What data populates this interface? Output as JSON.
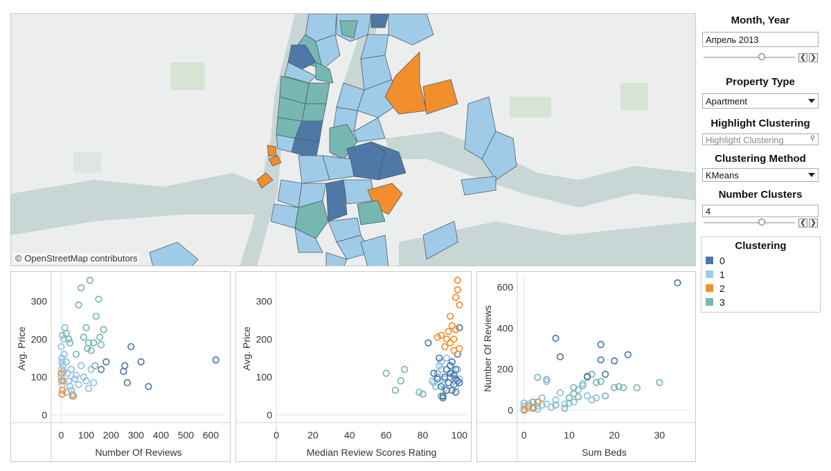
{
  "map": {
    "attribution": "© OpenStreetMap contributors"
  },
  "controls": {
    "month_year": {
      "title": "Month, Year",
      "value": "Апрель 2013",
      "slider_fraction": 0.65
    },
    "property_type": {
      "title": "Property Type",
      "value": "Apartment"
    },
    "highlight": {
      "title": "Highlight Clustering",
      "placeholder": "Highlight Clustering"
    },
    "method": {
      "title": "Clustering Method",
      "value": "KMeans"
    },
    "number_clusters": {
      "title": "Number Clusters",
      "value": "4",
      "slider_fraction": 0.65
    }
  },
  "legend": {
    "title": "Clustering",
    "items": [
      {
        "label": "0",
        "color": "#4e79a7"
      },
      {
        "label": "1",
        "color": "#a0cbe8"
      },
      {
        "label": "2",
        "color": "#f28e2b"
      },
      {
        "label": "3",
        "color": "#76b7b2"
      }
    ]
  },
  "chart_data": [
    {
      "type": "scatter",
      "xlabel": "Number Of Reviews",
      "ylabel": "Avg. Price",
      "xlim": [
        -40,
        660
      ],
      "ylim": [
        -20,
        370
      ],
      "xticks": [
        0,
        100,
        200,
        300,
        400,
        500,
        600
      ],
      "yticks": [
        0,
        100,
        200,
        300
      ],
      "points": [
        [
          0,
          100,
          1
        ],
        [
          2,
          120,
          1
        ],
        [
          3,
          140,
          1
        ],
        [
          5,
          80,
          1
        ],
        [
          8,
          90,
          1
        ],
        [
          10,
          200,
          1
        ],
        [
          12,
          160,
          1
        ],
        [
          15,
          230,
          1
        ],
        [
          20,
          60,
          1
        ],
        [
          25,
          110,
          1
        ],
        [
          30,
          90,
          1
        ],
        [
          35,
          75,
          1
        ],
        [
          40,
          65,
          1
        ],
        [
          45,
          55,
          1
        ],
        [
          50,
          50,
          1
        ],
        [
          55,
          95,
          1
        ],
        [
          60,
          105,
          1
        ],
        [
          70,
          80,
          1
        ],
        [
          80,
          130,
          1
        ],
        [
          90,
          100,
          1
        ],
        [
          100,
          90,
          1
        ],
        [
          110,
          70,
          1
        ],
        [
          120,
          120,
          1
        ],
        [
          130,
          85,
          1
        ],
        [
          5,
          210,
          1
        ],
        [
          0,
          180,
          1
        ],
        [
          3,
          150,
          1
        ],
        [
          6,
          130,
          1
        ],
        [
          10,
          115,
          1
        ],
        [
          20,
          140,
          1
        ],
        [
          40,
          120,
          1
        ],
        [
          0,
          110,
          2
        ],
        [
          2,
          90,
          2
        ],
        [
          5,
          65,
          2
        ],
        [
          3,
          55,
          2
        ],
        [
          45,
          50,
          2
        ],
        [
          20,
          215,
          3
        ],
        [
          30,
          200,
          3
        ],
        [
          35,
          190,
          3
        ],
        [
          60,
          160,
          3
        ],
        [
          70,
          290,
          3
        ],
        [
          80,
          335,
          3
        ],
        [
          90,
          205,
          3
        ],
        [
          100,
          230,
          3
        ],
        [
          105,
          175,
          3
        ],
        [
          110,
          190,
          3
        ],
        [
          115,
          355,
          3
        ],
        [
          120,
          170,
          3
        ],
        [
          130,
          190,
          3
        ],
        [
          140,
          260,
          3
        ],
        [
          150,
          305,
          3
        ],
        [
          155,
          205,
          3
        ],
        [
          160,
          185,
          3
        ],
        [
          170,
          225,
          3
        ],
        [
          135,
          130,
          3
        ],
        [
          160,
          120,
          0
        ],
        [
          180,
          140,
          0
        ],
        [
          250,
          115,
          0
        ],
        [
          255,
          130,
          0
        ],
        [
          265,
          85,
          0
        ],
        [
          280,
          180,
          0
        ],
        [
          320,
          140,
          0
        ],
        [
          350,
          75,
          0
        ],
        [
          620,
          145,
          0
        ]
      ]
    },
    {
      "type": "scatter",
      "xlabel": "Median Review Scores Rating",
      "ylabel": "Avg. Price",
      "xlim": [
        0,
        104
      ],
      "ylim": [
        -20,
        370
      ],
      "xticks": [
        0,
        20,
        40,
        60,
        80,
        100
      ],
      "yticks": [
        0,
        100,
        200,
        300
      ],
      "points": [
        [
          60,
          110,
          3
        ],
        [
          65,
          65,
          3
        ],
        [
          68,
          90,
          3
        ],
        [
          70,
          120,
          3
        ],
        [
          78,
          60,
          3
        ],
        [
          80,
          55,
          3
        ],
        [
          90,
          50,
          3
        ],
        [
          88,
          110,
          3
        ],
        [
          85,
          90,
          1
        ],
        [
          87,
          75,
          1
        ],
        [
          88,
          100,
          1
        ],
        [
          89,
          130,
          1
        ],
        [
          90,
          120,
          1
        ],
        [
          91,
          80,
          1
        ],
        [
          92,
          95,
          1
        ],
        [
          93,
          150,
          1
        ],
        [
          94,
          85,
          1
        ],
        [
          95,
          100,
          1
        ],
        [
          96,
          110,
          1
        ],
        [
          97,
          90,
          1
        ],
        [
          98,
          75,
          1
        ],
        [
          99,
          120,
          1
        ],
        [
          100,
          95,
          1
        ],
        [
          90,
          140,
          1
        ],
        [
          86,
          85,
          1
        ],
        [
          92,
          70,
          1
        ],
        [
          83,
          190,
          0
        ],
        [
          86,
          110,
          0
        ],
        [
          88,
          95,
          0
        ],
        [
          89,
          150,
          0
        ],
        [
          90,
          75,
          0
        ],
        [
          91,
          50,
          0
        ],
        [
          91,
          45,
          0
        ],
        [
          92,
          100,
          0
        ],
        [
          93,
          120,
          0
        ],
        [
          94,
          85,
          0
        ],
        [
          95,
          130,
          0
        ],
        [
          96,
          140,
          0
        ],
        [
          96,
          65,
          0
        ],
        [
          97,
          105,
          0
        ],
        [
          97,
          80,
          0
        ],
        [
          98,
          95,
          0
        ],
        [
          98,
          120,
          0
        ],
        [
          99,
          160,
          0
        ],
        [
          99,
          90,
          0
        ],
        [
          100,
          85,
          0
        ],
        [
          100,
          230,
          0
        ],
        [
          95,
          110,
          0
        ],
        [
          93,
          65,
          0
        ],
        [
          98,
          60,
          0
        ],
        [
          88,
          205,
          2
        ],
        [
          90,
          210,
          2
        ],
        [
          92,
          180,
          2
        ],
        [
          93,
          200,
          2
        ],
        [
          94,
          220,
          2
        ],
        [
          95,
          260,
          2
        ],
        [
          95,
          190,
          2
        ],
        [
          96,
          235,
          2
        ],
        [
          97,
          200,
          2
        ],
        [
          97,
          170,
          2
        ],
        [
          98,
          225,
          2
        ],
        [
          98,
          310,
          2
        ],
        [
          99,
          330,
          2
        ],
        [
          99,
          355,
          2
        ],
        [
          100,
          290,
          2
        ],
        [
          100,
          175,
          2
        ]
      ]
    },
    {
      "type": "scatter",
      "xlabel": "Sum Beds",
      "ylabel": "Number Of Reviews",
      "xlim": [
        -1.5,
        37
      ],
      "ylim": [
        -60,
        660
      ],
      "xticks": [
        0,
        10,
        20,
        30
      ],
      "yticks": [
        0,
        200,
        400,
        600
      ],
      "points": [
        [
          0,
          5,
          1
        ],
        [
          0,
          20,
          1
        ],
        [
          0,
          35,
          1
        ],
        [
          1,
          10,
          1
        ],
        [
          1,
          30,
          1
        ],
        [
          2,
          15,
          1
        ],
        [
          2,
          40,
          1
        ],
        [
          3,
          20,
          1
        ],
        [
          3,
          5,
          1
        ],
        [
          4,
          25,
          1
        ],
        [
          4,
          60,
          1
        ],
        [
          5,
          30,
          1
        ],
        [
          5,
          140,
          1
        ],
        [
          7,
          50,
          1
        ],
        [
          8,
          85,
          1
        ],
        [
          9,
          30,
          1
        ],
        [
          10,
          35,
          1
        ],
        [
          11,
          40,
          1
        ],
        [
          12,
          100,
          1
        ],
        [
          13,
          130,
          1
        ],
        [
          14,
          70,
          1
        ],
        [
          15,
          50,
          1
        ],
        [
          16,
          60,
          1
        ],
        [
          6,
          15,
          1
        ],
        [
          0,
          0,
          2
        ],
        [
          1,
          20,
          2
        ],
        [
          2,
          10,
          2
        ],
        [
          3,
          40,
          2
        ],
        [
          2,
          40,
          3
        ],
        [
          3,
          160,
          3
        ],
        [
          5,
          150,
          3
        ],
        [
          7,
          25,
          3
        ],
        [
          9,
          10,
          3
        ],
        [
          10,
          60,
          3
        ],
        [
          11,
          80,
          3
        ],
        [
          11,
          110,
          3
        ],
        [
          12,
          65,
          3
        ],
        [
          13,
          120,
          3
        ],
        [
          14,
          160,
          3
        ],
        [
          15,
          175,
          3
        ],
        [
          16,
          135,
          3
        ],
        [
          17,
          140,
          3
        ],
        [
          18,
          70,
          3
        ],
        [
          20,
          110,
          3
        ],
        [
          21,
          115,
          3
        ],
        [
          22,
          110,
          3
        ],
        [
          25,
          110,
          3
        ],
        [
          30,
          135,
          3
        ],
        [
          7,
          350,
          0
        ],
        [
          8,
          260,
          0
        ],
        [
          14,
          165,
          0
        ],
        [
          17,
          320,
          0
        ],
        [
          17,
          245,
          0
        ],
        [
          18,
          175,
          0
        ],
        [
          20,
          240,
          0
        ],
        [
          23,
          270,
          0
        ],
        [
          34,
          620,
          0
        ]
      ]
    }
  ]
}
